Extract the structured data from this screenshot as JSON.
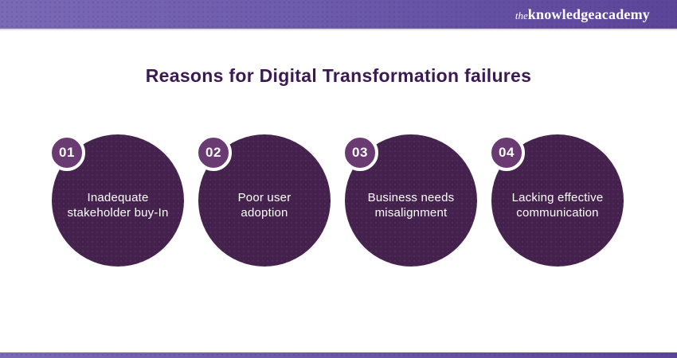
{
  "header": {
    "logo": {
      "the": "the",
      "knowledge": "knowledge",
      "academy": "academy"
    }
  },
  "title": "Reasons for Digital Transformation failures",
  "items": [
    {
      "number": "01",
      "label": "Inadequate\nstakeholder buy-In"
    },
    {
      "number": "02",
      "label": "Poor user\nadoption"
    },
    {
      "number": "03",
      "label": "Business needs\nmisalignment"
    },
    {
      "number": "04",
      "label": "Lacking effective\ncommunication"
    }
  ],
  "colors": {
    "header_gradient_start": "#7a69b5",
    "header_gradient_end": "#5b4599",
    "title_text": "#3b1a54",
    "circle_fill": "#45224e",
    "badge_fill": "#6a3a73",
    "badge_ring": "#ffffff",
    "circle_text": "#ffffff",
    "background": "#ffffff"
  }
}
